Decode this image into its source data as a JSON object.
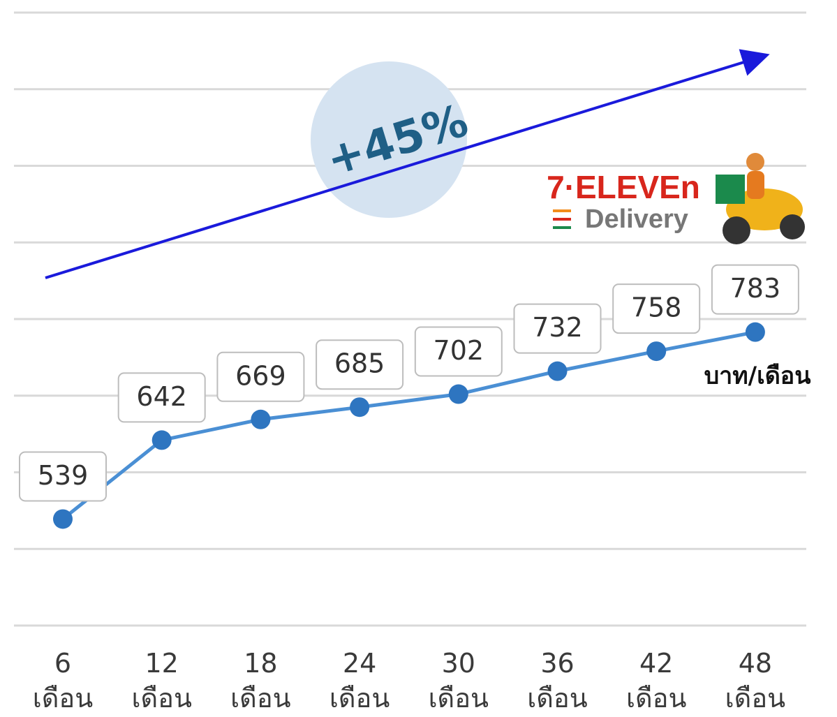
{
  "chart_data": {
    "type": "line",
    "categories": [
      "6\nเดือน",
      "12\nเดือน",
      "18\nเดือน",
      "24\nเดือน",
      "30\nเดือน",
      "36\nเดือน",
      "42\nเดือน",
      "48\nเดือน"
    ],
    "values": [
      539,
      642,
      669,
      685,
      702,
      732,
      758,
      783
    ],
    "color": "#2e75c0",
    "ylim": [
      400,
      1200
    ],
    "yticks": [
      400,
      500,
      600,
      700,
      800,
      900,
      1000,
      1100,
      1200
    ],
    "grid": true,
    "annotations": {
      "growth": "+45%",
      "unit": "บาท/เดือน"
    },
    "logo": {
      "brand": "7·ELEVEn",
      "service": "Delivery"
    }
  }
}
